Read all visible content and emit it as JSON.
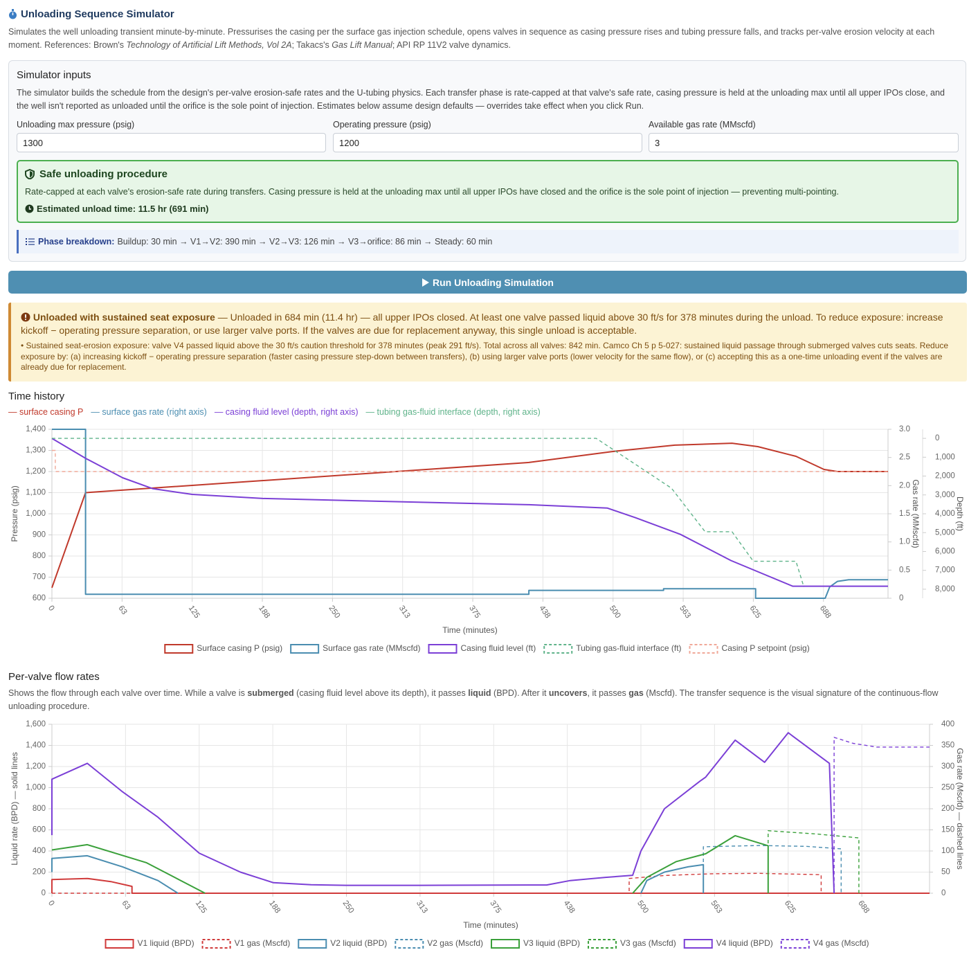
{
  "header": {
    "title": "Unloading Sequence Simulator",
    "description": [
      "Simulates the well unloading transient minute-by-minute. Pressurises the casing per the surface gas injection schedule, opens valves in sequence as casing pressure rises and tubing pressure falls, and tracks per-valve erosion velocity at each moment. References: Brown's ",
      "Technology of Artificial Lift Methods, Vol 2A",
      "; Takacs's ",
      "Gas Lift Manual",
      "; API RP 11V2 valve dynamics."
    ]
  },
  "inputs": {
    "title": "Simulator inputs",
    "note": "The simulator builds the schedule from the design's per-valve erosion-safe rates and the U-tubing physics. Each transfer phase is rate-capped at that valve's safe rate, casing pressure is held at the unloading max until all upper IPOs close, and the well isn't reported as unloaded until the orifice is the sole point of injection. Estimates below assume design defaults — overrides take effect when you click Run.",
    "fields": [
      {
        "label": "Unloading max pressure (psig)",
        "value": "1300"
      },
      {
        "label": "Operating pressure (psig)",
        "value": "1200"
      },
      {
        "label": "Available gas rate (MMscfd)",
        "value": "3"
      }
    ],
    "safe": {
      "title": "Safe unloading procedure",
      "text": "Rate-capped at each valve's erosion-safe rate during transfers. Casing pressure is held at the unloading max until all upper IPOs have closed and the orifice is the sole point of injection — preventing multi-pointing.",
      "estimate": "Estimated unload time: 11.5 hr (691 min)"
    },
    "phase": {
      "label": "Phase breakdown:",
      "text": "Buildup: 30 min → V1→V2: 390 min → V2→V3: 126 min → V3→orifice: 86 min → Steady: 60 min"
    }
  },
  "button": "Run Unloading Simulation",
  "warning": {
    "title": "Unloaded with sustained seat exposure",
    "text": " — Unloaded in 684 min (11.4 hr) — all upper IPOs closed. At least one valve passed liquid above 30 ft/s for 378 minutes during the unload. To reduce exposure: increase kickoff − operating pressure separation, or use larger valve ports. If the valves are due for replacement anyway, this single unload is acceptable.",
    "detail": "• Sustained seat-erosion exposure: valve V4 passed liquid above the 30 ft/s caution threshold for 378 minutes (peak 291 ft/s). Total across all valves: 842 min. Camco Ch 5 p 5-027: sustained liquid passage through submerged valves cuts seats. Reduce exposure by: (a) increasing kickoff − operating pressure separation (faster casing pressure step-down between transfers), (b) using larger valve ports (lower velocity for the same flow), or (c) accepting this as a one-time unloading event if the valves are already due for replacement."
  },
  "time_history": {
    "title": "Time history",
    "key": [
      "— surface casing P",
      "— surface gas rate (right axis)",
      "— casing fluid level (depth, right axis)",
      "— tubing gas-fluid interface (depth, right axis)"
    ]
  },
  "valve_flows": {
    "title": "Per-valve flow rates",
    "description": [
      "Shows the flow through each valve over time. While a valve is ",
      "submerged",
      " (casing fluid level above its depth), it passes ",
      "liquid",
      " (BPD). After it ",
      "uncovers",
      ", it passes ",
      "gas",
      " (Mscfd). The transfer sequence is the visual signature of the continuous-flow unloading procedure."
    ]
  },
  "chart_data": [
    {
      "type": "line",
      "xlabel": "Time (minutes)",
      "ylabel": "Pressure (psig)",
      "y2label": "Gas rate (MMscfd)",
      "y3label": "Depth (ft)",
      "grid": true,
      "xlim": [
        0,
        745
      ],
      "xticks": [
        0,
        {
          "value": 62.5,
          "label": "63"
        },
        125,
        {
          "value": 187.5,
          "label": "188"
        },
        250,
        {
          "value": 312.5,
          "label": "313"
        },
        375,
        {
          "value": 437.5,
          "label": "438"
        },
        500,
        {
          "value": 562.5,
          "label": "563"
        },
        625,
        {
          "value": 687.5,
          "label": "688"
        }
      ],
      "ylim": [
        600,
        1400
      ],
      "yticks": [
        600,
        700,
        800,
        900,
        {
          "value": 1000,
          "label": "1,000"
        },
        {
          "value": 1100,
          "label": "1,100"
        },
        {
          "value": 1200,
          "label": "1,200"
        },
        {
          "value": 1300,
          "label": "1,300"
        },
        {
          "value": 1400,
          "label": "1,400"
        }
      ],
      "y2lim": [
        0,
        3
      ],
      "y2ticks": [
        0,
        0.5,
        {
          "value": 1,
          "label": "1.0"
        },
        1.5,
        {
          "value": 2,
          "label": "2.0"
        },
        2.5,
        {
          "value": 3,
          "label": "3.0"
        }
      ],
      "y3lim": [
        8480,
        -480
      ],
      "y3ticks": [
        0,
        {
          "value": 1000,
          "label": "1,000"
        },
        {
          "value": 2000,
          "label": "2,000"
        },
        {
          "value": 3000,
          "label": "3,000"
        },
        {
          "value": 4000,
          "label": "4,000"
        },
        {
          "value": 5000,
          "label": "5,000"
        },
        {
          "value": 6000,
          "label": "6,000"
        },
        {
          "value": 7000,
          "label": "7,000"
        },
        {
          "value": 8000,
          "label": "8,000"
        }
      ],
      "series": [
        {
          "name": "Surface casing P (psig)",
          "color": "#c0392b",
          "axis": "y",
          "style": "solid",
          "x": [
            0,
            30,
            425,
            500,
            555,
            606,
            629,
            663,
            688,
            700,
            745
          ],
          "values": [
            650,
            1100,
            1243,
            1295,
            1325,
            1334,
            1318,
            1272,
            1210,
            1200,
            1200
          ]
        },
        {
          "name": "Surface gas rate (MMscfd)",
          "color": "#4a8db0",
          "axis": "y2",
          "style": "solid",
          "x": [
            0,
            30,
            30,
            425,
            425,
            545,
            545,
            627,
            627,
            689,
            693,
            700,
            710,
            745
          ],
          "values": [
            3,
            3,
            0.07,
            0.07,
            0.14,
            0.14,
            0.17,
            0.17,
            0,
            0,
            0.2,
            0.3,
            0.33,
            0.33
          ]
        },
        {
          "name": "Casing fluid level (ft)",
          "color": "#7b3fd6",
          "axis": "y3",
          "style": "solid",
          "x": [
            0,
            30,
            63,
            90,
            125,
            188,
            313,
            425,
            495,
            520,
            560,
            605,
            660,
            745
          ],
          "values": [
            0,
            1060,
            2090,
            2670,
            2970,
            3190,
            3370,
            3520,
            3700,
            4210,
            5090,
            6480,
            7840,
            7840
          ]
        },
        {
          "name": "Tubing gas-fluid interface (ft)",
          "color": "#5fb38a",
          "axis": "y3",
          "style": "dashed",
          "x": [
            0,
            485,
            552,
            582,
            606,
            625,
            663,
            670
          ],
          "values": [
            0,
            0,
            2640,
            4950,
            4950,
            6520,
            6520,
            7880
          ]
        },
        {
          "name": "Casing P setpoint (psig)",
          "color": "#f0a898",
          "axis": "y",
          "style": "dashed",
          "x": [
            0,
            3,
            3,
            745
          ],
          "values": [
            1300,
            1300,
            1200,
            1200
          ]
        }
      ]
    },
    {
      "type": "line",
      "xlabel": "Time (minutes)",
      "ylabel": "Liquid rate (BPD) — solid lines",
      "y2label": "Gas rate (Mscfd) — dashed lines",
      "grid": true,
      "xlim": [
        0,
        745
      ],
      "xticks": [
        0,
        {
          "value": 62.5,
          "label": "63"
        },
        125,
        {
          "value": 187.5,
          "label": "188"
        },
        250,
        {
          "value": 312.5,
          "label": "313"
        },
        375,
        {
          "value": 437.5,
          "label": "438"
        },
        500,
        {
          "value": 562.5,
          "label": "563"
        },
        625,
        {
          "value": 687.5,
          "label": "688"
        }
      ],
      "ylim": [
        0,
        1600
      ],
      "yticks": [
        0,
        200,
        400,
        600,
        800,
        {
          "value": 1000,
          "label": "1,000"
        },
        {
          "value": 1200,
          "label": "1,200"
        },
        {
          "value": 1400,
          "label": "1,400"
        },
        {
          "value": 1600,
          "label": "1,600"
        }
      ],
      "y2lim": [
        0,
        400
      ],
      "y2ticks": [
        0,
        50,
        100,
        150,
        200,
        250,
        300,
        350,
        400
      ],
      "series": [
        {
          "name": "V1 liquid (BPD)",
          "color": "#d03a3a",
          "axis": "y",
          "style": "solid",
          "x": [
            0,
            0,
            30,
            50,
            68,
            68,
            745
          ],
          "values": [
            0,
            130,
            140,
            110,
            65,
            0,
            0
          ]
        },
        {
          "name": "V1 gas (Mscfd)",
          "color": "#d03a3a",
          "axis": "y2",
          "style": "dashed",
          "x": [
            0,
            490,
            490,
            520,
            560,
            600,
            653,
            653
          ],
          "values": [
            0,
            0,
            35,
            42,
            46,
            47,
            44,
            0
          ]
        },
        {
          "name": "V2 liquid (BPD)",
          "color": "#4a8db0",
          "axis": "y",
          "style": "solid",
          "x": [
            0,
            0,
            30,
            60,
            90,
            107,
            300,
            500,
            505,
            520,
            540,
            553,
            553
          ],
          "values": [
            200,
            330,
            355,
            250,
            120,
            0,
            null,
            0,
            120,
            200,
            250,
            270,
            0
          ]
        },
        {
          "name": "V2 gas (Mscfd)",
          "color": "#4a8db0",
          "axis": "y2",
          "style": "dashed",
          "x": [
            553,
            553,
            600,
            640,
            670,
            670
          ],
          "values": [
            0,
            110,
            113,
            111,
            105,
            0
          ]
        },
        {
          "name": "V3 liquid (BPD)",
          "color": "#3aa03a",
          "axis": "y",
          "style": "solid",
          "x": [
            0,
            30,
            80,
            130,
            300,
            493,
            505,
            530,
            555,
            580,
            608,
            608
          ],
          "values": [
            410,
            460,
            290,
            0,
            null,
            0,
            150,
            300,
            374,
            545,
            450,
            0
          ]
        },
        {
          "name": "V3 gas (Mscfd)",
          "color": "#3aa03a",
          "axis": "y2",
          "style": "dashed",
          "x": [
            608,
            608,
            650,
            685,
            685
          ],
          "values": [
            0,
            148,
            140,
            131,
            0
          ]
        },
        {
          "name": "V4 liquid (BPD)",
          "color": "#7b3fd6",
          "axis": "y",
          "style": "solid",
          "x": [
            0,
            0,
            30,
            60,
            90,
            125,
            160,
            188,
            220,
            250,
            313,
            420,
            440,
            470,
            493,
            500,
            520,
            550,
            555,
            580,
            605,
            625,
            660,
            664
          ],
          "values": [
            550,
            1080,
            1230,
            960,
            720,
            380,
            200,
            100,
            80,
            75,
            75,
            78,
            120,
            150,
            170,
            400,
            800,
            1060,
            1100,
            1450,
            1240,
            1520,
            1230,
            0
          ]
        },
        {
          "name": "V4 gas (Mscfd)",
          "color": "#7b3fd6",
          "axis": "y2",
          "style": "dashed",
          "x": [
            664,
            664,
            680,
            700,
            745
          ],
          "values": [
            0,
            369,
            355,
            346,
            346
          ]
        }
      ]
    }
  ]
}
